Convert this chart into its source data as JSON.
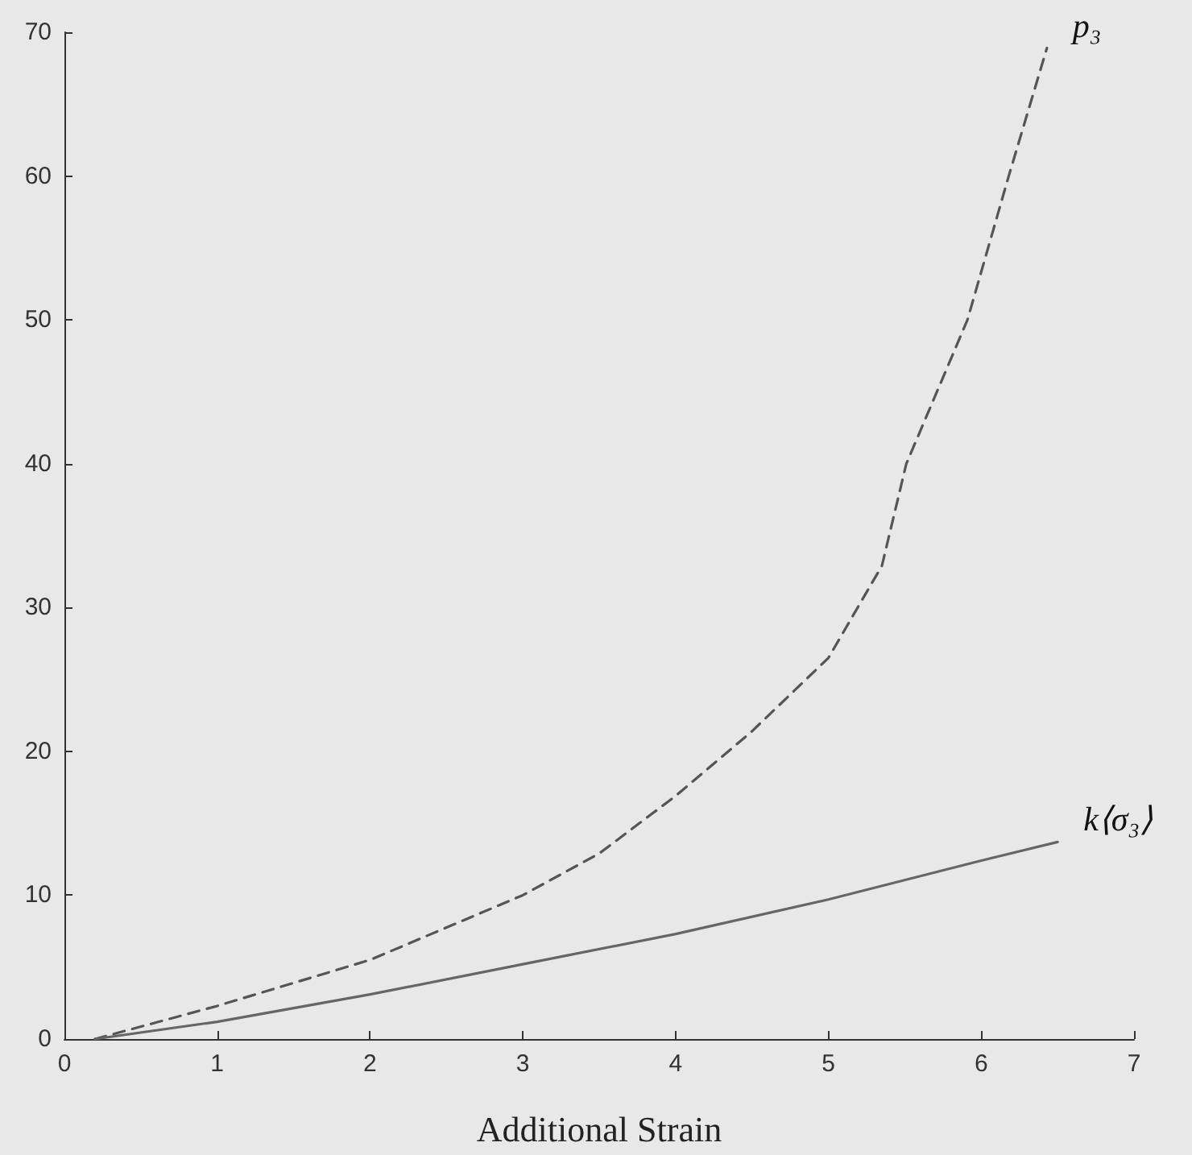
{
  "chart_data": {
    "type": "line",
    "xlabel": "Additional Strain",
    "xlim": [
      0,
      7
    ],
    "xticks": [
      0,
      1,
      2,
      3,
      4,
      5,
      6,
      7
    ],
    "ylim": [
      0,
      70
    ],
    "yticks": [
      0,
      10,
      20,
      30,
      40,
      50,
      60,
      70
    ],
    "grid": false,
    "legend": false,
    "marker": "none",
    "series": [
      {
        "name": "p₃",
        "color": "#555555",
        "line_style": "dashed",
        "x": [
          0.2,
          1,
          2,
          3,
          3.5,
          4,
          4.5,
          5,
          5.35,
          5.51,
          5.91,
          6.18,
          6.43
        ],
        "values": [
          0,
          2.3,
          5.5,
          10,
          12.9,
          16.9,
          21.4,
          26.5,
          32.9,
          40,
          50,
          60,
          68.9
        ]
      },
      {
        "name": "k⟨σ₃⟩",
        "color": "#666666",
        "line_style": "solid",
        "x": [
          0.2,
          1,
          2,
          3,
          4,
          5,
          6,
          6.5
        ],
        "values": [
          0,
          1.2,
          3.1,
          5.2,
          7.3,
          9.7,
          12.4,
          13.7
        ]
      }
    ]
  }
}
